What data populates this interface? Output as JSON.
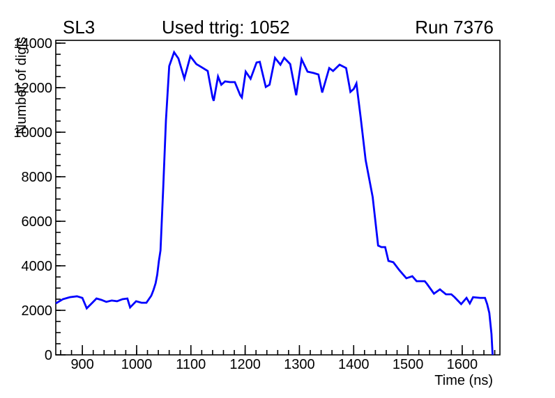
{
  "header": {
    "left": "SL3",
    "center": "Used ttrig: 1052",
    "right": "Run 7376"
  },
  "chart_data": {
    "type": "line",
    "title": "Used ttrig: 1052",
    "title_left": "SL3",
    "title_right": "Run 7376",
    "xlabel": "Time (ns)",
    "ylabel": "Number of digis",
    "xlim": [
      851,
      1669.5
    ],
    "ylim": [
      0,
      14125
    ],
    "x_major_ticks": [
      900,
      1000,
      1100,
      1200,
      1300,
      1400,
      1500,
      1600
    ],
    "x_minor_step": 20,
    "y_major_ticks": [
      0,
      2000,
      4000,
      6000,
      8000,
      10000,
      12000,
      14000
    ],
    "y_minor_step": 500,
    "grid": false,
    "legend": false,
    "line_color": "#0000ff",
    "axis_color": "#000000",
    "series": [
      {
        "name": "number-of-digis-vs-time",
        "points": [
          [
            851,
            2310
          ],
          [
            864,
            2500
          ],
          [
            877,
            2590
          ],
          [
            890,
            2630
          ],
          [
            900,
            2560
          ],
          [
            908,
            2090
          ],
          [
            917,
            2310
          ],
          [
            926,
            2530
          ],
          [
            935,
            2470
          ],
          [
            944,
            2380
          ],
          [
            954,
            2440
          ],
          [
            964,
            2410
          ],
          [
            974,
            2500
          ],
          [
            983,
            2530
          ],
          [
            988,
            2130
          ],
          [
            999,
            2410
          ],
          [
            1009,
            2340
          ],
          [
            1018,
            2340
          ],
          [
            1027,
            2660
          ],
          [
            1031,
            2910
          ],
          [
            1035,
            3220
          ],
          [
            1038,
            3600
          ],
          [
            1041,
            4220
          ],
          [
            1044,
            4690
          ],
          [
            1049,
            7500
          ],
          [
            1054,
            10530
          ],
          [
            1060,
            12970
          ],
          [
            1069,
            13590
          ],
          [
            1077,
            13310
          ],
          [
            1083,
            12810
          ],
          [
            1088,
            12410
          ],
          [
            1099,
            13410
          ],
          [
            1110,
            13060
          ],
          [
            1121,
            12900
          ],
          [
            1131,
            12750
          ],
          [
            1140,
            11560
          ],
          [
            1142,
            11410
          ],
          [
            1150,
            12500
          ],
          [
            1156,
            12130
          ],
          [
            1163,
            12280
          ],
          [
            1172,
            12250
          ],
          [
            1181,
            12250
          ],
          [
            1191,
            11660
          ],
          [
            1194,
            11560
          ],
          [
            1201,
            12720
          ],
          [
            1210,
            12400
          ],
          [
            1221,
            13130
          ],
          [
            1227,
            13160
          ],
          [
            1238,
            12030
          ],
          [
            1245,
            12130
          ],
          [
            1255,
            13340
          ],
          [
            1265,
            13030
          ],
          [
            1272,
            13340
          ],
          [
            1283,
            13060
          ],
          [
            1294,
            11660
          ],
          [
            1304,
            13280
          ],
          [
            1315,
            12720
          ],
          [
            1326,
            12660
          ],
          [
            1335,
            12590
          ],
          [
            1342,
            11780
          ],
          [
            1355,
            12880
          ],
          [
            1362,
            12750
          ],
          [
            1374,
            13030
          ],
          [
            1386,
            12880
          ],
          [
            1394,
            11810
          ],
          [
            1400,
            11940
          ],
          [
            1405,
            12190
          ],
          [
            1413,
            10630
          ],
          [
            1422,
            8750
          ],
          [
            1435,
            7090
          ],
          [
            1445,
            4910
          ],
          [
            1451,
            4840
          ],
          [
            1458,
            4840
          ],
          [
            1464,
            4220
          ],
          [
            1473,
            4160
          ],
          [
            1484,
            3810
          ],
          [
            1497,
            3440
          ],
          [
            1508,
            3530
          ],
          [
            1516,
            3310
          ],
          [
            1531,
            3310
          ],
          [
            1535,
            3190
          ],
          [
            1548,
            2750
          ],
          [
            1559,
            2940
          ],
          [
            1570,
            2720
          ],
          [
            1580,
            2720
          ],
          [
            1586,
            2590
          ],
          [
            1598,
            2280
          ],
          [
            1608,
            2560
          ],
          [
            1614,
            2310
          ],
          [
            1620,
            2590
          ],
          [
            1633,
            2560
          ],
          [
            1642,
            2560
          ],
          [
            1646,
            2280
          ],
          [
            1650,
            1880
          ],
          [
            1654,
            940
          ],
          [
            1656,
            0
          ]
        ]
      }
    ]
  }
}
